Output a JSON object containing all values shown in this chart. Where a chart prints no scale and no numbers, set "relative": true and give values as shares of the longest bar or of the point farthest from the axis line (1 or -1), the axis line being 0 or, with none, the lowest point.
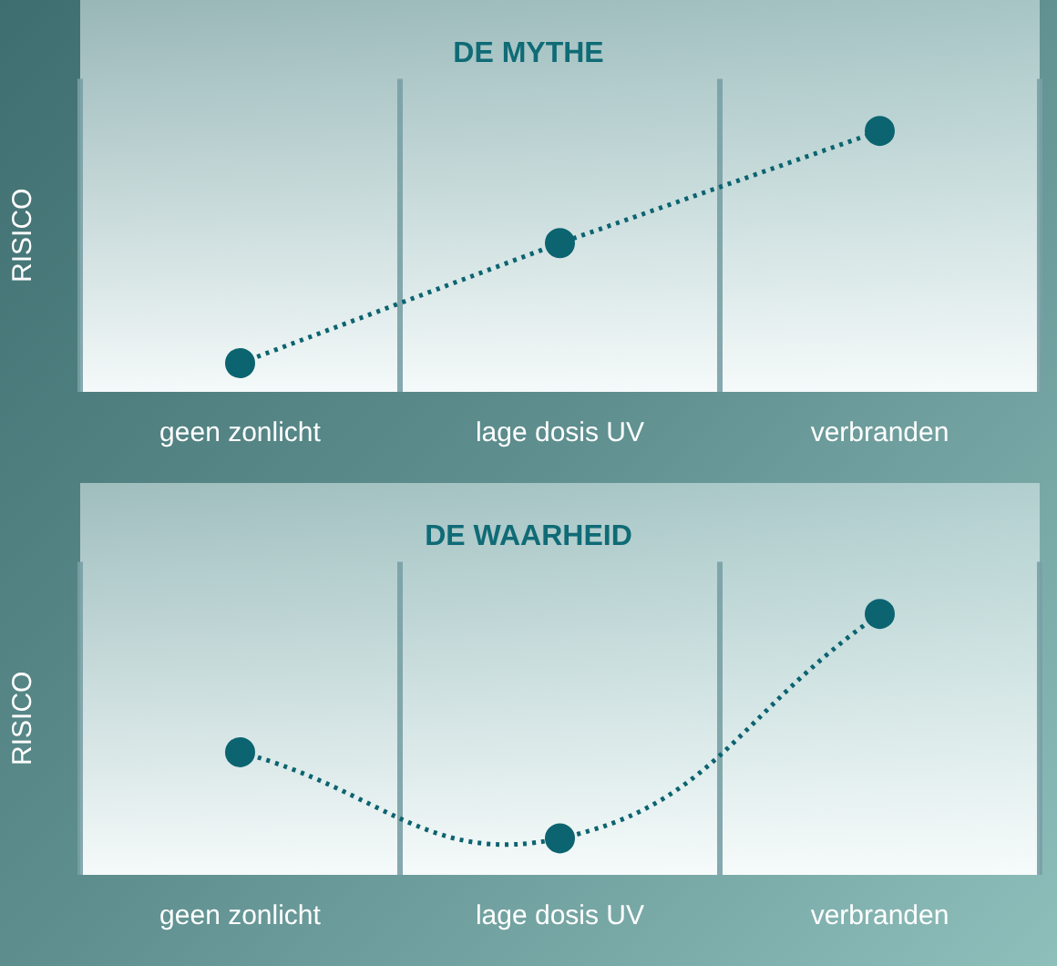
{
  "chart_data": [
    {
      "type": "line",
      "title": "DE MYTHE",
      "ylabel": "RISICO",
      "categories": [
        "geen zonlicht",
        "lage dosis UV",
        "verbranden"
      ],
      "relative": true,
      "series": [
        {
          "color": "#0b6470",
          "values": [
            0.11,
            0.57,
            1
          ]
        }
      ],
      "marker": "circle",
      "line_style": "dotted",
      "grid": "x",
      "legend": false
    },
    {
      "type": "line",
      "title": "DE WAARHEID",
      "ylabel": "RISICO",
      "categories": [
        "geen zonlicht",
        "lage dosis UV",
        "verbranden"
      ],
      "relative": true,
      "series": [
        {
          "color": "#0b6470",
          "values": [
            0.47,
            0.14,
            1
          ]
        }
      ],
      "marker": "circle",
      "line_style": "dotted",
      "grid": "x",
      "legend": false
    }
  ]
}
